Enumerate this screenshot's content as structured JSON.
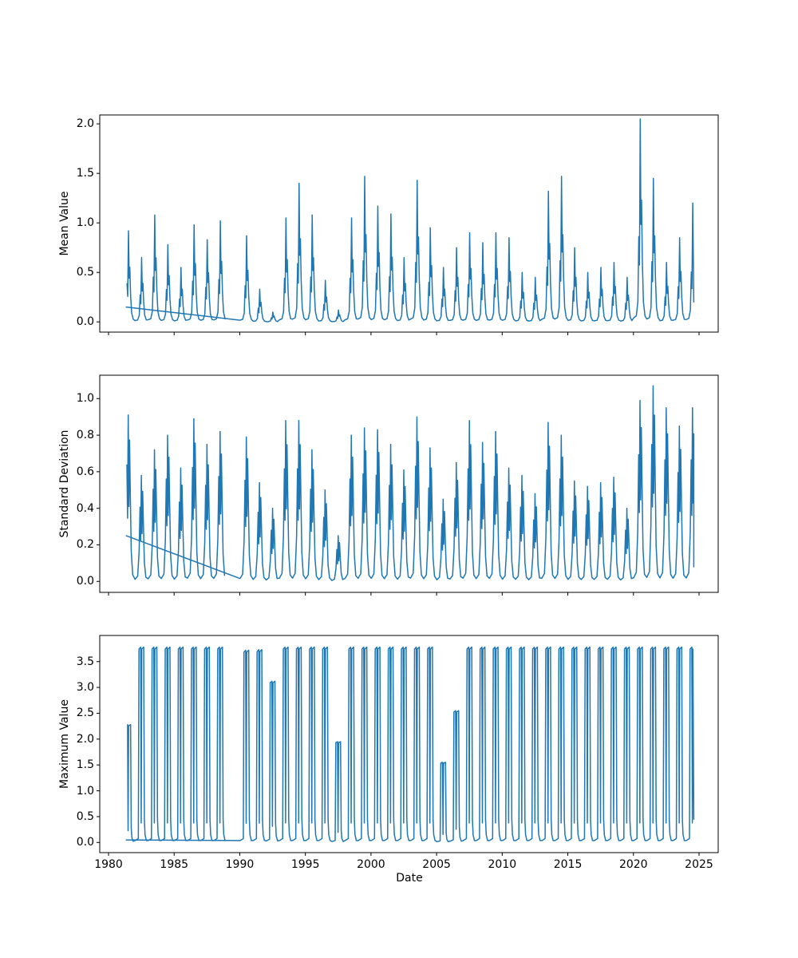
{
  "figure": {
    "background": "#ffffff",
    "title": ""
  },
  "xlabel": "Date",
  "line_color": "#1f77b4",
  "axis_color": "#000000",
  "x_ticks": [
    1980,
    1985,
    1990,
    1995,
    2000,
    2005,
    2010,
    2015,
    2020,
    2025
  ],
  "xlim": [
    1979.33,
    2026.46
  ],
  "years": [
    1981,
    1982,
    1983,
    1984,
    1985,
    1986,
    1987,
    1988,
    1989,
    1990,
    1991,
    1992,
    1993,
    1994,
    1995,
    1996,
    1997,
    1998,
    1999,
    2000,
    2001,
    2002,
    2003,
    2004,
    2005,
    2006,
    2007,
    2008,
    2009,
    2010,
    2011,
    2012,
    2013,
    2014,
    2015,
    2016,
    2017,
    2018,
    2019,
    2020,
    2021,
    2022,
    2023,
    2024
  ],
  "chart_data": [
    {
      "type": "line",
      "title": "",
      "ylabel": "Mean Value",
      "xlabel": "Date",
      "legend": null,
      "grid": false,
      "yticks": [
        0.0,
        0.5,
        1.0,
        1.5,
        2.0
      ],
      "ylim": [
        -0.103,
        2.09
      ],
      "x_start": 1981.35,
      "start_value": 0.15,
      "x_end": 2024.6,
      "end_value": 0.2,
      "annual_peaks": [
        0.92,
        0.65,
        1.08,
        0.78,
        0.55,
        0.98,
        0.83,
        1.02,
        null,
        0.87,
        0.33,
        0.1,
        1.05,
        1.4,
        1.08,
        0.42,
        0.12,
        1.05,
        1.47,
        1.17,
        1.09,
        0.65,
        1.43,
        0.95,
        0.55,
        0.75,
        0.9,
        0.8,
        0.9,
        0.85,
        0.5,
        0.45,
        1.32,
        1.47,
        0.75,
        0.5,
        0.55,
        0.6,
        0.45,
        2.05,
        1.45,
        0.6,
        0.85,
        1.2
      ],
      "season_profile": [
        [
          0.02,
          0.02
        ],
        [
          0.22,
          0.03
        ],
        [
          0.34,
          0.1
        ],
        [
          0.41,
          0.42
        ],
        [
          0.46,
          0.28
        ],
        [
          0.52,
          1.0
        ],
        [
          0.57,
          0.48
        ],
        [
          0.62,
          0.6
        ],
        [
          0.68,
          0.3
        ],
        [
          0.76,
          0.1
        ],
        [
          0.88,
          0.03
        ]
      ]
    },
    {
      "type": "line",
      "title": "",
      "ylabel": "Standard Deviation",
      "xlabel": "Date",
      "legend": null,
      "grid": false,
      "yticks": [
        0.0,
        0.2,
        0.4,
        0.6,
        0.8,
        1.0
      ],
      "ylim": [
        -0.06,
        1.128
      ],
      "x_start": 1981.35,
      "start_value": 0.25,
      "x_end": 2024.6,
      "end_value": 0.08,
      "annual_peaks": [
        0.91,
        0.58,
        0.72,
        0.8,
        0.62,
        0.89,
        0.75,
        0.82,
        null,
        0.79,
        0.54,
        0.4,
        0.88,
        0.88,
        0.72,
        0.5,
        0.25,
        0.8,
        0.84,
        0.83,
        0.75,
        0.61,
        0.9,
        0.73,
        0.45,
        0.65,
        0.88,
        0.76,
        0.82,
        0.62,
        0.58,
        0.48,
        0.87,
        0.8,
        0.55,
        0.52,
        0.54,
        0.57,
        0.4,
        0.99,
        1.07,
        0.95,
        0.85,
        0.95
      ],
      "season_profile": [
        [
          0.02,
          0.02
        ],
        [
          0.22,
          0.05
        ],
        [
          0.33,
          0.28
        ],
        [
          0.4,
          0.7
        ],
        [
          0.45,
          0.38
        ],
        [
          0.5,
          1.0
        ],
        [
          0.55,
          0.45
        ],
        [
          0.6,
          0.85
        ],
        [
          0.66,
          0.52
        ],
        [
          0.73,
          0.18
        ],
        [
          0.84,
          0.04
        ]
      ]
    },
    {
      "type": "line",
      "title": "",
      "ylabel": "Maximum Value",
      "xlabel": "Date",
      "legend": null,
      "grid": false,
      "yticks": [
        0.0,
        0.5,
        1.0,
        1.5,
        2.0,
        2.5,
        3.0,
        3.5
      ],
      "ylim": [
        -0.196,
        4.005
      ],
      "x_start": 1981.35,
      "start_value": 0.05,
      "x_end": 2024.6,
      "end_value": 0.45,
      "annual_peaks": [
        2.28,
        3.78,
        3.78,
        3.78,
        3.78,
        3.78,
        3.78,
        3.78,
        null,
        3.72,
        3.73,
        3.12,
        3.78,
        3.78,
        3.78,
        3.78,
        1.95,
        3.78,
        3.78,
        3.78,
        3.78,
        3.78,
        3.78,
        3.78,
        1.55,
        2.55,
        3.78,
        3.78,
        3.78,
        3.78,
        3.78,
        3.78,
        3.78,
        3.78,
        3.78,
        3.78,
        3.78,
        3.78,
        3.78,
        3.78,
        3.78,
        3.78,
        3.78,
        3.78
      ],
      "season_profile": [
        [
          0.03,
          0.01
        ],
        [
          0.27,
          0.02
        ],
        [
          0.32,
          0.99
        ],
        [
          0.45,
          1.0
        ],
        [
          0.49,
          0.1
        ],
        [
          0.53,
          0.99
        ],
        [
          0.68,
          1.0
        ],
        [
          0.73,
          0.12
        ],
        [
          0.78,
          0.04
        ],
        [
          0.88,
          0.01
        ]
      ]
    }
  ],
  "data_gaps_years": [
    1989
  ]
}
